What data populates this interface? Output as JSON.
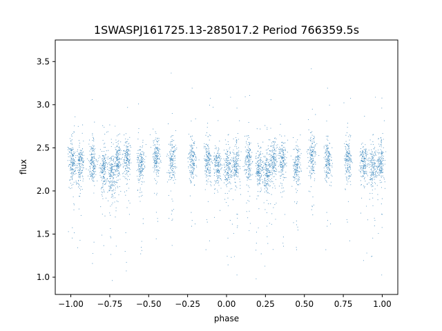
{
  "chart_data": {
    "type": "scatter",
    "title": "1SWASPJ161725.13-285017.2 Period 766359.5s",
    "xlabel": "phase",
    "ylabel": "flux",
    "xlim": [
      -1.1,
      1.1
    ],
    "ylim": [
      0.8,
      3.75
    ],
    "xticks": [
      -1.0,
      -0.75,
      -0.5,
      -0.25,
      0.0,
      0.25,
      0.5,
      0.75,
      1.0
    ],
    "xtick_labels": [
      "−1.00",
      "−0.75",
      "−0.50",
      "−0.25",
      "0.00",
      "0.25",
      "0.50",
      "0.75",
      "1.00"
    ],
    "yticks": [
      1.0,
      1.5,
      2.0,
      2.5,
      3.0,
      3.5
    ],
    "ytick_labels": [
      "1.0",
      "1.5",
      "2.0",
      "2.5",
      "3.0",
      "3.5"
    ],
    "grid": false,
    "marker_color": "#1f77b4",
    "point_clusters": [
      {
        "phase": -0.99,
        "flux": 2.35
      },
      {
        "phase": -0.94,
        "flux": 2.3
      },
      {
        "phase": -0.86,
        "flux": 2.33
      },
      {
        "phase": -0.79,
        "flux": 2.25
      },
      {
        "phase": -0.74,
        "flux": 2.2
      },
      {
        "phase": -0.7,
        "flux": 2.35
      },
      {
        "phase": -0.64,
        "flux": 2.35
      },
      {
        "phase": -0.55,
        "flux": 2.3
      },
      {
        "phase": -0.45,
        "flux": 2.4
      },
      {
        "phase": -0.35,
        "flux": 2.35
      },
      {
        "phase": -0.22,
        "flux": 2.35
      },
      {
        "phase": -0.12,
        "flux": 2.35
      },
      {
        "phase": -0.06,
        "flux": 2.3
      },
      {
        "phase": 0.01,
        "flux": 2.3
      },
      {
        "phase": 0.06,
        "flux": 2.3
      },
      {
        "phase": 0.14,
        "flux": 2.33
      },
      {
        "phase": 0.21,
        "flux": 2.25
      },
      {
        "phase": 0.26,
        "flux": 2.2
      },
      {
        "phase": 0.3,
        "flux": 2.35
      },
      {
        "phase": 0.36,
        "flux": 2.35
      },
      {
        "phase": 0.45,
        "flux": 2.3
      },
      {
        "phase": 0.55,
        "flux": 2.4
      },
      {
        "phase": 0.65,
        "flux": 2.35
      },
      {
        "phase": 0.78,
        "flux": 2.35
      },
      {
        "phase": 0.88,
        "flux": 2.35
      },
      {
        "phase": 0.94,
        "flux": 2.3
      },
      {
        "phase": 0.99,
        "flux": 2.3
      }
    ]
  }
}
